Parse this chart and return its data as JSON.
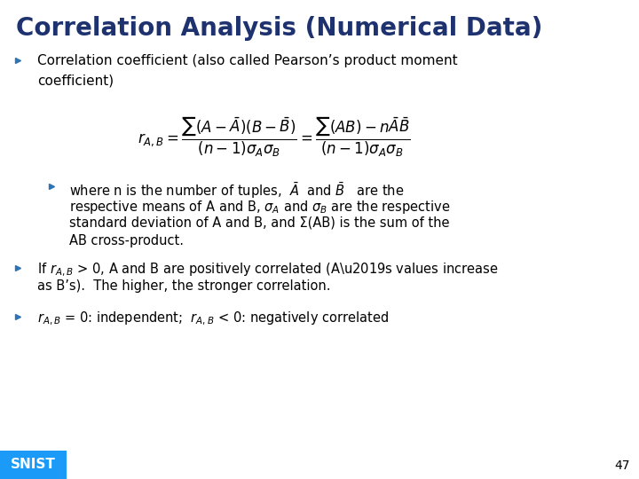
{
  "title": "Correlation Analysis (Numerical Data)",
  "title_color": "#1F3270",
  "title_fontsize": 20,
  "bg_color": "#FFFFFF",
  "bullet_color": "#2E74B5",
  "text_color": "#000000",
  "snist_bg": "#1B9AF7",
  "snist_text": "SNIST",
  "page_number": "47",
  "formula": "$r_{A,B} = \\dfrac{\\sum(A-\\bar{A})(B-\\bar{B})}{(n-1)\\sigma_A\\sigma_B} = \\dfrac{\\sum(AB) - n\\bar{A}\\bar{B}}{(n-1)\\sigma_A\\sigma_B}$"
}
